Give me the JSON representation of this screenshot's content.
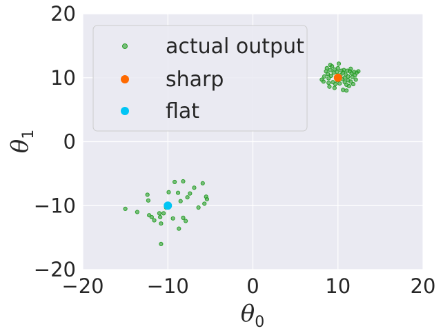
{
  "chart_data": {
    "type": "scatter",
    "xlabel": "θ",
    "xlabel_sub": "0",
    "ylabel": "θ",
    "ylabel_sub": "1",
    "xlim": [
      -20,
      20
    ],
    "ylim": [
      -20,
      20
    ],
    "xticks": [
      -20,
      -10,
      0,
      10,
      20
    ],
    "yticks": [
      -20,
      -10,
      0,
      10,
      20
    ],
    "xtick_labels": [
      "−20",
      "−10",
      "0",
      "10",
      "20"
    ],
    "ytick_labels": [
      "−20",
      "−10",
      "0",
      "10",
      "20"
    ],
    "grid": true,
    "legend_position": "top-left",
    "series": [
      {
        "name": "actual output",
        "color": "#2ca02c",
        "points": [
          [
            -15.0,
            -10.5
          ],
          [
            -13.6,
            -11.0
          ],
          [
            -12.4,
            -8.3
          ],
          [
            -12.3,
            -9.2
          ],
          [
            -12.2,
            -11.5
          ],
          [
            -11.9,
            -11.8
          ],
          [
            -11.6,
            -12.3
          ],
          [
            -11.0,
            -11.2
          ],
          [
            -10.9,
            -11.8
          ],
          [
            -10.8,
            -12.8
          ],
          [
            -10.5,
            -11.2
          ],
          [
            -10.8,
            -16.0
          ],
          [
            -10.2,
            -10.3
          ],
          [
            -9.9,
            -7.9
          ],
          [
            -9.4,
            -12.0
          ],
          [
            -9.2,
            -6.3
          ],
          [
            -8.8,
            -8.0
          ],
          [
            -8.5,
            -9.3
          ],
          [
            -8.7,
            -13.6
          ],
          [
            -8.2,
            -6.2
          ],
          [
            -8.2,
            -11.9
          ],
          [
            -7.9,
            -12.4
          ],
          [
            -7.7,
            -8.7
          ],
          [
            -7.4,
            -8.1
          ],
          [
            -6.9,
            -7.2
          ],
          [
            -6.4,
            -10.3
          ],
          [
            -5.9,
            -6.5
          ],
          [
            -5.7,
            -9.7
          ],
          [
            -5.5,
            -8.6
          ],
          [
            -5.4,
            -9.0
          ],
          [
            8.1,
            9.7
          ],
          [
            8.3,
            9.4
          ],
          [
            8.4,
            10.2
          ],
          [
            8.6,
            11.0
          ],
          [
            8.7,
            11.5
          ],
          [
            8.8,
            10.6
          ],
          [
            8.9,
            9.9
          ],
          [
            9.0,
            8.6
          ],
          [
            9.1,
            11.2
          ],
          [
            9.1,
            12.0
          ],
          [
            9.2,
            10.3
          ],
          [
            9.3,
            11.8
          ],
          [
            9.4,
            9.3
          ],
          [
            9.5,
            10.8
          ],
          [
            9.6,
            8.4
          ],
          [
            9.6,
            11.3
          ],
          [
            9.8,
            10.1
          ],
          [
            9.9,
            9.6
          ],
          [
            9.9,
            10.9
          ],
          [
            10.0,
            11.5
          ],
          [
            10.2,
            9.1
          ],
          [
            10.3,
            10.4
          ],
          [
            10.4,
            11.1
          ],
          [
            10.5,
            9.8
          ],
          [
            10.6,
            8.1
          ],
          [
            10.6,
            10.8
          ],
          [
            10.7,
            11.2
          ],
          [
            10.8,
            9.3
          ],
          [
            10.9,
            10.5
          ],
          [
            11.0,
            8.9
          ],
          [
            11.0,
            8.0
          ],
          [
            11.1,
            11.1
          ],
          [
            11.2,
            9.6
          ],
          [
            11.2,
            10.2
          ],
          [
            11.3,
            8.7
          ],
          [
            11.4,
            11.0
          ],
          [
            11.5,
            9.4
          ],
          [
            11.6,
            10.7
          ],
          [
            11.7,
            10.1
          ],
          [
            11.8,
            9.0
          ],
          [
            11.9,
            10.9
          ],
          [
            12.0,
            10.4
          ],
          [
            12.1,
            9.7
          ],
          [
            12.2,
            10.8
          ],
          [
            12.4,
            11.0
          ],
          [
            8.9,
            9.2
          ],
          [
            9.7,
            9.0
          ],
          [
            10.1,
            12.2
          ],
          [
            10.8,
            10.0
          ],
          [
            11.5,
            11.4
          ]
        ]
      },
      {
        "name": "sharp",
        "color": "#ff6a00",
        "points": [
          [
            10.0,
            10.0
          ]
        ]
      },
      {
        "name": "flat",
        "color": "#00c5f5",
        "points": [
          [
            -10.0,
            -10.0
          ]
        ]
      }
    ]
  }
}
